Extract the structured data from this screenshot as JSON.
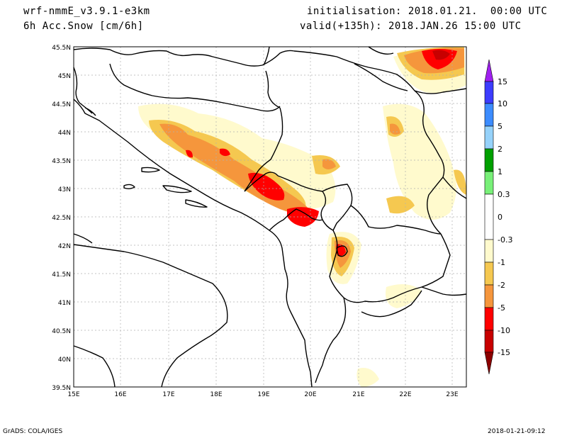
{
  "header": {
    "model": "wrf-nmmE_v3.9.1-e3km",
    "field": "6h Acc.Snow [cm/6h]",
    "init": "initialisation: 2018.01.21.  00:00 UTC",
    "valid": "valid(+135h): 2018.JAN.26 15:00 UTC"
  },
  "map": {
    "lon_labels": [
      "15E",
      "16E",
      "17E",
      "18E",
      "19E",
      "20E",
      "21E",
      "22E",
      "23E"
    ],
    "lat_labels": [
      "45.5N",
      "45N",
      "44.5N",
      "44N",
      "43.5N",
      "43N",
      "42.5N",
      "42N",
      "41.5N",
      "41N",
      "40.5N",
      "40N",
      "39.5N"
    ]
  },
  "legend": {
    "labels": [
      "15",
      "10",
      "5",
      "2",
      "1",
      "0.3",
      "0",
      "-0.3",
      "-1",
      "-2",
      "-5",
      "-10",
      "-15"
    ],
    "colors": [
      "#a020f0",
      "#3c3cff",
      "#3c8cff",
      "#96d2fa",
      "#00a000",
      "#78f078",
      "#ffffff",
      "#fffacd",
      "#f5c850",
      "#f5963c",
      "#ff0000",
      "#c80000",
      "#8c0000"
    ]
  },
  "footer": {
    "left": "GrADS: COLA/IGES",
    "right": "2018-01-21-09:12"
  }
}
